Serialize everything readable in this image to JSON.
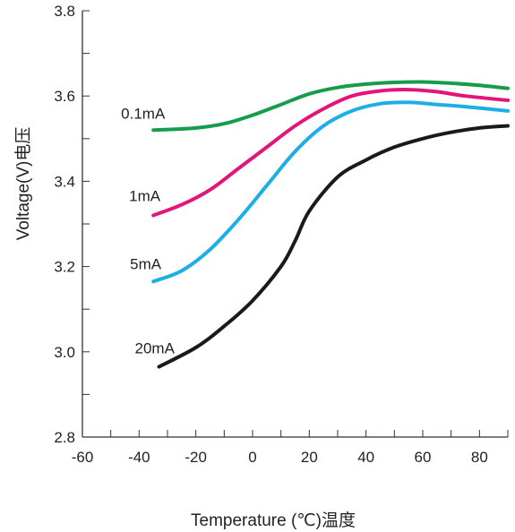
{
  "chart_data": {
    "type": "line",
    "xlabel": "Temperature (℃)温度",
    "ylabel": "Voltage(V)电压",
    "xlim": [
      -60,
      90
    ],
    "ylim": [
      2.8,
      3.8
    ],
    "x_ticks": [
      -60,
      -40,
      -20,
      0,
      20,
      40,
      60,
      80
    ],
    "x_tick_labels": [
      "-60",
      "-40",
      "-20",
      "0",
      "20",
      "40",
      "60",
      "80"
    ],
    "y_ticks": [
      2.8,
      3.0,
      3.2,
      3.4,
      3.6,
      3.8
    ],
    "y_tick_labels": [
      "2.8",
      "3.0",
      "3.2",
      "3.4",
      "3.6",
      "3.8"
    ],
    "grid": false,
    "legend": "inline labels",
    "series": [
      {
        "name": "0.1mA",
        "color": "#169c4b",
        "x": [
          -35,
          -20,
          -10,
          0,
          10,
          20,
          30,
          40,
          50,
          60,
          70,
          80,
          90
        ],
        "values": [
          3.52,
          3.525,
          3.535,
          3.555,
          3.58,
          3.605,
          3.62,
          3.628,
          3.632,
          3.633,
          3.63,
          3.625,
          3.618
        ]
      },
      {
        "name": "1mA",
        "color": "#e3157a",
        "x": [
          -35,
          -25,
          -15,
          -5,
          5,
          15,
          25,
          35,
          45,
          55,
          65,
          75,
          90
        ],
        "values": [
          3.32,
          3.345,
          3.38,
          3.43,
          3.48,
          3.53,
          3.57,
          3.6,
          3.612,
          3.615,
          3.61,
          3.6,
          3.59
        ]
      },
      {
        "name": "5mA",
        "color": "#1eaee6",
        "x": [
          -35,
          -25,
          -15,
          -5,
          5,
          15,
          25,
          35,
          45,
          55,
          65,
          75,
          90
        ],
        "values": [
          3.165,
          3.19,
          3.24,
          3.31,
          3.39,
          3.47,
          3.53,
          3.565,
          3.582,
          3.585,
          3.58,
          3.575,
          3.565
        ]
      },
      {
        "name": "20mA",
        "color": "#1a1a1a",
        "x": [
          -33,
          -20,
          -10,
          0,
          10,
          15,
          20,
          30,
          40,
          50,
          60,
          70,
          80,
          90
        ],
        "values": [
          2.965,
          3.01,
          3.06,
          3.12,
          3.2,
          3.26,
          3.33,
          3.41,
          3.45,
          3.48,
          3.5,
          3.515,
          3.525,
          3.53
        ]
      }
    ],
    "series_labels": [
      "0.1mA",
      "1mA",
      "5mA",
      "20mA"
    ]
  }
}
